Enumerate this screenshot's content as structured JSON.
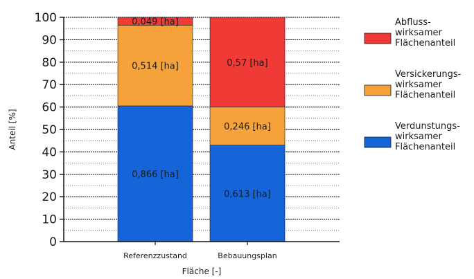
{
  "chart_data": {
    "type": "bar",
    "stacked": true,
    "xlabel": "Fläche [-]",
    "ylabel": "Anteil [%]",
    "ylim": [
      0,
      100
    ],
    "yticks": [
      0,
      10,
      20,
      30,
      40,
      50,
      60,
      70,
      80,
      90,
      100
    ],
    "categories": [
      "Referenzzustand",
      "Bebauungsplan"
    ],
    "series": [
      {
        "name": "Verdunstungs-wirksamer Flächenanteil",
        "legend_lines": [
          "Verdunstungs-",
          "wirksamer",
          "Flächenanteil"
        ],
        "color": "#1565d8",
        "values": [
          60.5,
          43
        ],
        "labels": [
          "0,866 [ha]",
          "0,613 [ha]"
        ]
      },
      {
        "name": "Versickerungs-wirksamer Flächenanteil",
        "legend_lines": [
          "Versickerungs-",
          "wirksamer",
          "Flächenanteil"
        ],
        "color": "#f5a23a",
        "values": [
          36,
          17
        ],
        "labels": [
          "0,514 [ha]",
          "0,246 [ha]"
        ]
      },
      {
        "name": "Abfluss-wirksamer Flächenanteil",
        "legend_lines": [
          "Abfluss-",
          "wirksamer",
          "Flächenanteil"
        ],
        "color": "#ef3a36",
        "values": [
          3.5,
          40
        ],
        "labels": [
          "0,049 [ha]",
          "0,57 [ha]"
        ]
      }
    ],
    "grid": true,
    "legend_position": "right"
  }
}
